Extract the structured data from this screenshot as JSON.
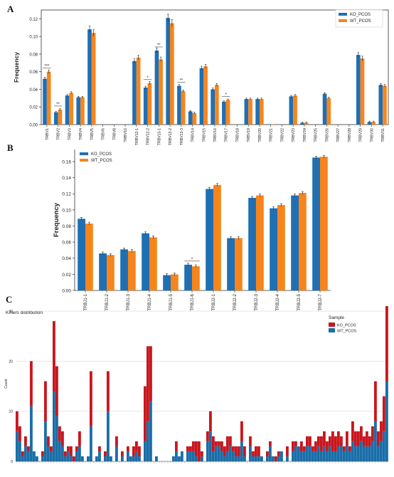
{
  "colors": {
    "ko": "#1f6fb4",
    "wt": "#f7851c",
    "kmer_ko": "#c9161e",
    "kmer_wt": "#1a6ea8"
  },
  "chart_data": [
    {
      "panel": "A",
      "type": "bar",
      "ylabel": "Frequency",
      "ylim": [
        0,
        0.13
      ],
      "yticks": [
        "0.00",
        "0.02",
        "0.04",
        "0.06",
        "0.08",
        "0.10",
        "0.12"
      ],
      "legend_position": "top-right",
      "categories": [
        "TRBV1",
        "TRBV2",
        "TRBV3",
        "TRBV4",
        "TRBV5",
        "TRBV6",
        "TRBV8",
        "TRBV10",
        "TRBV12-1",
        "TRBV12-2",
        "TRBV13-1",
        "TRBV13-2",
        "TRBV13-3",
        "TRBV14",
        "TRBV15",
        "TRBV16",
        "TRBV17",
        "TRBV18",
        "TRBV19",
        "TRBV20",
        "TRBV21",
        "TRBV22",
        "TRBV23",
        "TRBV24",
        "TRBV25",
        "TRBV26",
        "TRBV27",
        "TRBV28",
        "TRBV29",
        "TRBV30",
        "TRBV31"
      ],
      "series": [
        {
          "name": "KO_PCOS",
          "values": [
            0.052,
            0.014,
            0.033,
            0.031,
            0.108,
            0,
            0,
            0,
            0.072,
            0.042,
            0.084,
            0.121,
            0.044,
            0.015,
            0.064,
            0.04,
            0.026,
            0,
            0.029,
            0.029,
            0.0005,
            0,
            0.032,
            0.002,
            0,
            0.035,
            0,
            0,
            0.079,
            0.003,
            0.045
          ]
        },
        {
          "name": "WT_PCOS",
          "values": [
            0.06,
            0.017,
            0.036,
            0.031,
            0.104,
            0,
            0,
            0,
            0.076,
            0.047,
            0.074,
            0.115,
            0.038,
            0.013,
            0.066,
            0.045,
            0.028,
            0,
            0.029,
            0.029,
            0.0005,
            0,
            0.033,
            0.002,
            0,
            0.03,
            0,
            0,
            0.075,
            0.003,
            0.044
          ]
        }
      ],
      "annotations": [
        {
          "category": "TRBV1",
          "text": "***"
        },
        {
          "category": "TRBV2",
          "text": "**"
        },
        {
          "category": "TRBV12-2",
          "text": "*"
        },
        {
          "category": "TRBV13-1",
          "text": "**"
        },
        {
          "category": "TRBV13-3",
          "text": "**"
        },
        {
          "category": "TRBV17",
          "text": "*"
        }
      ]
    },
    {
      "panel": "B",
      "type": "bar",
      "ylabel": "Frequency",
      "ylim": [
        0,
        0.175
      ],
      "yticks": [
        "0.00",
        "0.02",
        "0.04",
        "0.06",
        "0.08",
        "0.10",
        "0.12",
        "0.14",
        "0.16"
      ],
      "legend_position": "top-left",
      "categories": [
        "TRBJ1-1",
        "TRBJ1-2",
        "TRBJ1-3",
        "TRBJ1-4",
        "TRBJ1-5",
        "TRBJ1-6",
        "TRBJ2-1",
        "TRBJ2-2",
        "TRBJ2-3",
        "TRBJ2-4",
        "TRBJ2-5",
        "TRBJ2-7"
      ],
      "series": [
        {
          "name": "KO_PCOS",
          "values": [
            0.089,
            0.046,
            0.051,
            0.071,
            0.019,
            0.032,
            0.126,
            0.065,
            0.115,
            0.102,
            0.118,
            0.165
          ]
        },
        {
          "name": "WT_PCOS",
          "values": [
            0.083,
            0.044,
            0.049,
            0.066,
            0.02,
            0.03,
            0.131,
            0.065,
            0.118,
            0.106,
            0.121,
            0.166
          ]
        }
      ],
      "annotations": [
        {
          "category": "TRBJ1-6",
          "text": "*"
        }
      ]
    },
    {
      "panel": "C",
      "type": "bar",
      "stacked": true,
      "title": "Kmers distribution",
      "ylabel": "Count",
      "ylim": [
        0,
        31
      ],
      "yticks": [
        "0",
        "10",
        "20",
        "30"
      ],
      "legend_title": "Sample",
      "legend_position": "top-right",
      "series": [
        {
          "name": "WT_PCOS",
          "values": [
            6,
            4,
            1,
            3,
            2,
            11,
            2,
            1,
            0,
            1,
            8,
            3,
            2,
            14,
            9,
            4,
            3,
            1,
            2,
            1,
            0,
            2,
            3,
            1,
            0,
            1,
            7,
            0,
            1,
            2,
            0,
            1,
            10,
            1,
            0,
            3,
            0,
            1,
            0,
            2,
            1,
            1,
            2,
            1,
            0,
            4,
            8,
            12,
            0,
            1,
            0,
            0,
            0,
            0,
            0,
            1,
            2,
            1,
            2,
            0,
            2,
            2,
            2,
            1,
            0,
            1,
            0,
            4,
            6,
            2,
            3,
            3,
            2,
            1,
            2,
            3,
            2,
            1,
            1,
            4,
            1,
            0,
            3,
            1,
            1,
            1,
            1,
            0,
            1,
            3,
            1,
            0,
            1,
            2,
            0,
            1,
            0,
            2,
            3,
            3,
            2,
            2,
            3,
            3,
            2,
            2,
            3,
            2,
            3,
            2,
            3,
            2,
            2,
            3,
            3,
            2,
            3,
            2,
            4,
            3,
            3,
            4,
            3,
            3,
            3,
            4,
            8,
            3,
            4,
            6,
            16
          ]
        },
        {
          "name": "KO_PCOS",
          "values": [
            4,
            3,
            1,
            2,
            1,
            9,
            0,
            0,
            0,
            1,
            8,
            2,
            1,
            14,
            10,
            3,
            3,
            1,
            1,
            2,
            1,
            1,
            3,
            0,
            0,
            0,
            11,
            0,
            0,
            1,
            0,
            1,
            8,
            0,
            0,
            2,
            0,
            1,
            0,
            1,
            0,
            2,
            2,
            2,
            0,
            11,
            15,
            11,
            0,
            0,
            0,
            0,
            0,
            0,
            0,
            0,
            2,
            0,
            0,
            0,
            1,
            1,
            2,
            3,
            4,
            1,
            0,
            2,
            4,
            3,
            1,
            1,
            2,
            2,
            3,
            2,
            1,
            2,
            2,
            4,
            2,
            0,
            2,
            1,
            2,
            2,
            0,
            0,
            1,
            1,
            0,
            1,
            1,
            0,
            0,
            2,
            0,
            2,
            1,
            0,
            2,
            1,
            2,
            2,
            1,
            2,
            2,
            3,
            3,
            2,
            2,
            4,
            3,
            3,
            2,
            1,
            3,
            1,
            4,
            3,
            3,
            3,
            2,
            3,
            2,
            3,
            8,
            3,
            4,
            7,
            15
          ]
        }
      ]
    }
  ]
}
